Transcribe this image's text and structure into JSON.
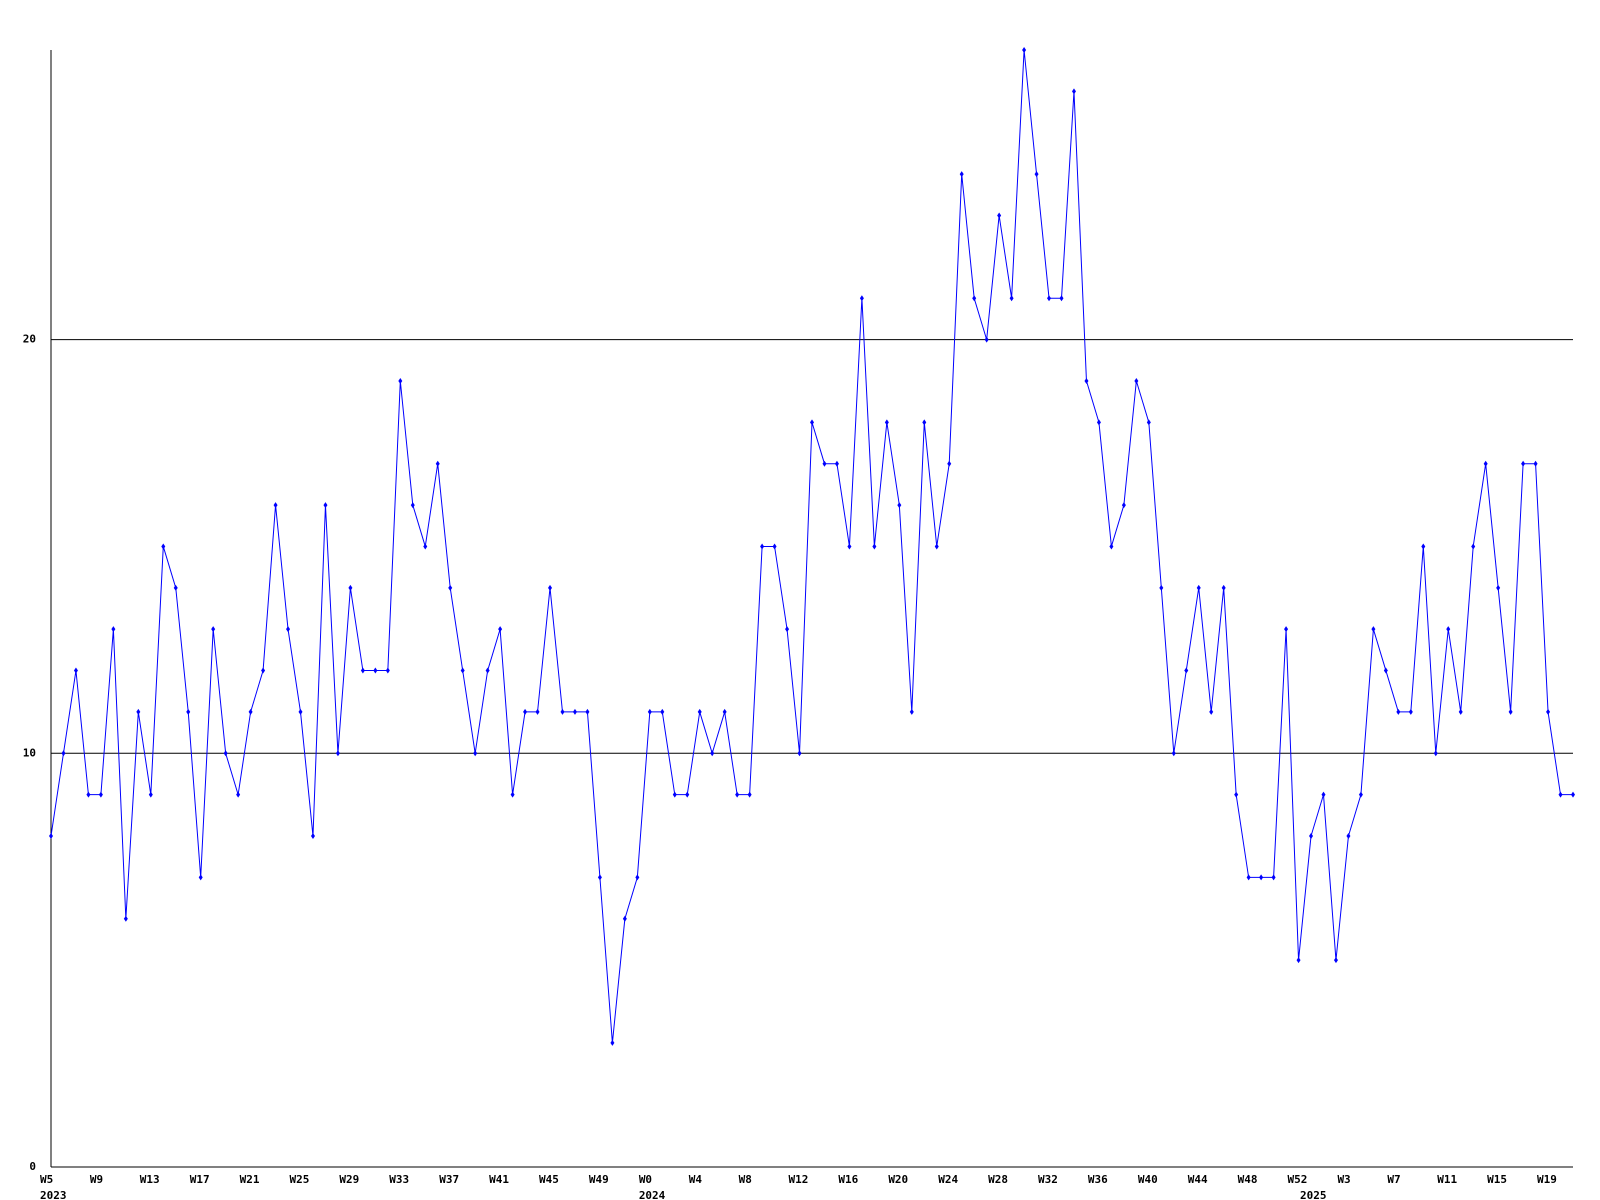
{
  "chart_data": {
    "type": "line",
    "categories": [
      "W5",
      null,
      null,
      null,
      "W9",
      null,
      null,
      null,
      "W13",
      null,
      null,
      null,
      "W17",
      null,
      null,
      null,
      "W21",
      null,
      null,
      null,
      "W25",
      null,
      null,
      null,
      "W29",
      null,
      null,
      null,
      "W33",
      null,
      null,
      null,
      "W37",
      null,
      null,
      null,
      "W41",
      null,
      null,
      null,
      "W45",
      null,
      null,
      null,
      "W49",
      null,
      null,
      null,
      "W0",
      null,
      null,
      null,
      "W4",
      null,
      null,
      null,
      "W8",
      null,
      null,
      null,
      "W12",
      null,
      null,
      null,
      "W16",
      null,
      null,
      null,
      "W20",
      null,
      null,
      null,
      "W24",
      null,
      null,
      null,
      "W28",
      null,
      null,
      null,
      "W32",
      null,
      null,
      null,
      "W36",
      null,
      null,
      null,
      "W40",
      null,
      null,
      null,
      "W44",
      null,
      null,
      null,
      "W48",
      null,
      null,
      null,
      "W52",
      null,
      null,
      null,
      "W3",
      null,
      null,
      null,
      "W7",
      null,
      null,
      null,
      "W11",
      null,
      null,
      null,
      "W15",
      null,
      null,
      null,
      "W19",
      null,
      null
    ],
    "category_groups": [
      "2023",
      null,
      null,
      null,
      null,
      null,
      null,
      null,
      null,
      null,
      null,
      null,
      null,
      null,
      null,
      null,
      null,
      null,
      null,
      null,
      null,
      null,
      null,
      null,
      null,
      null,
      null,
      null,
      null,
      null,
      null,
      null,
      null,
      null,
      null,
      null,
      null,
      null,
      null,
      null,
      null,
      null,
      null,
      null,
      null,
      null,
      null,
      null,
      "2024",
      null,
      null,
      null,
      null,
      null,
      null,
      null,
      null,
      null,
      null,
      null,
      null,
      null,
      null,
      null,
      null,
      null,
      null,
      null,
      null,
      null,
      null,
      null,
      null,
      null,
      null,
      null,
      null,
      null,
      null,
      null,
      null,
      null,
      null,
      null,
      null,
      null,
      null,
      null,
      null,
      null,
      null,
      null,
      null,
      null,
      null,
      null,
      null,
      null,
      null,
      null,
      null,
      "2025",
      null,
      null,
      null,
      null,
      null,
      null,
      null,
      null,
      null,
      null,
      null,
      null,
      null,
      null,
      null,
      null,
      null,
      null,
      null,
      null,
      null
    ],
    "values": [
      8,
      10,
      12,
      9,
      9,
      13,
      6,
      11,
      9,
      15,
      14,
      11,
      7,
      13,
      10,
      9,
      11,
      12,
      16,
      13,
      11,
      8,
      16,
      10,
      14,
      12,
      12,
      12,
      19,
      16,
      15,
      17,
      14,
      12,
      10,
      12,
      13,
      9,
      11,
      11,
      14,
      11,
      11,
      11,
      7,
      3,
      6,
      7,
      11,
      11,
      9,
      9,
      11,
      10,
      11,
      9,
      9,
      15,
      15,
      13,
      10,
      18,
      17,
      17,
      15,
      21,
      15,
      18,
      16,
      11,
      18,
      15,
      17,
      24,
      21,
      20,
      23,
      21,
      27,
      24,
      21,
      21,
      26,
      19,
      18,
      15,
      16,
      19,
      18,
      14,
      10,
      12,
      14,
      11,
      14,
      9,
      7,
      7,
      7,
      13,
      5,
      8,
      9,
      5,
      8,
      9,
      13,
      12,
      11,
      11,
      15,
      10,
      13,
      11,
      15,
      17,
      14,
      11,
      17,
      17,
      11,
      9,
      9
    ],
    "color": "#0000ff",
    "ylim": [
      0,
      27
    ],
    "yticks": [
      0,
      10,
      20
    ],
    "grid": true
  }
}
